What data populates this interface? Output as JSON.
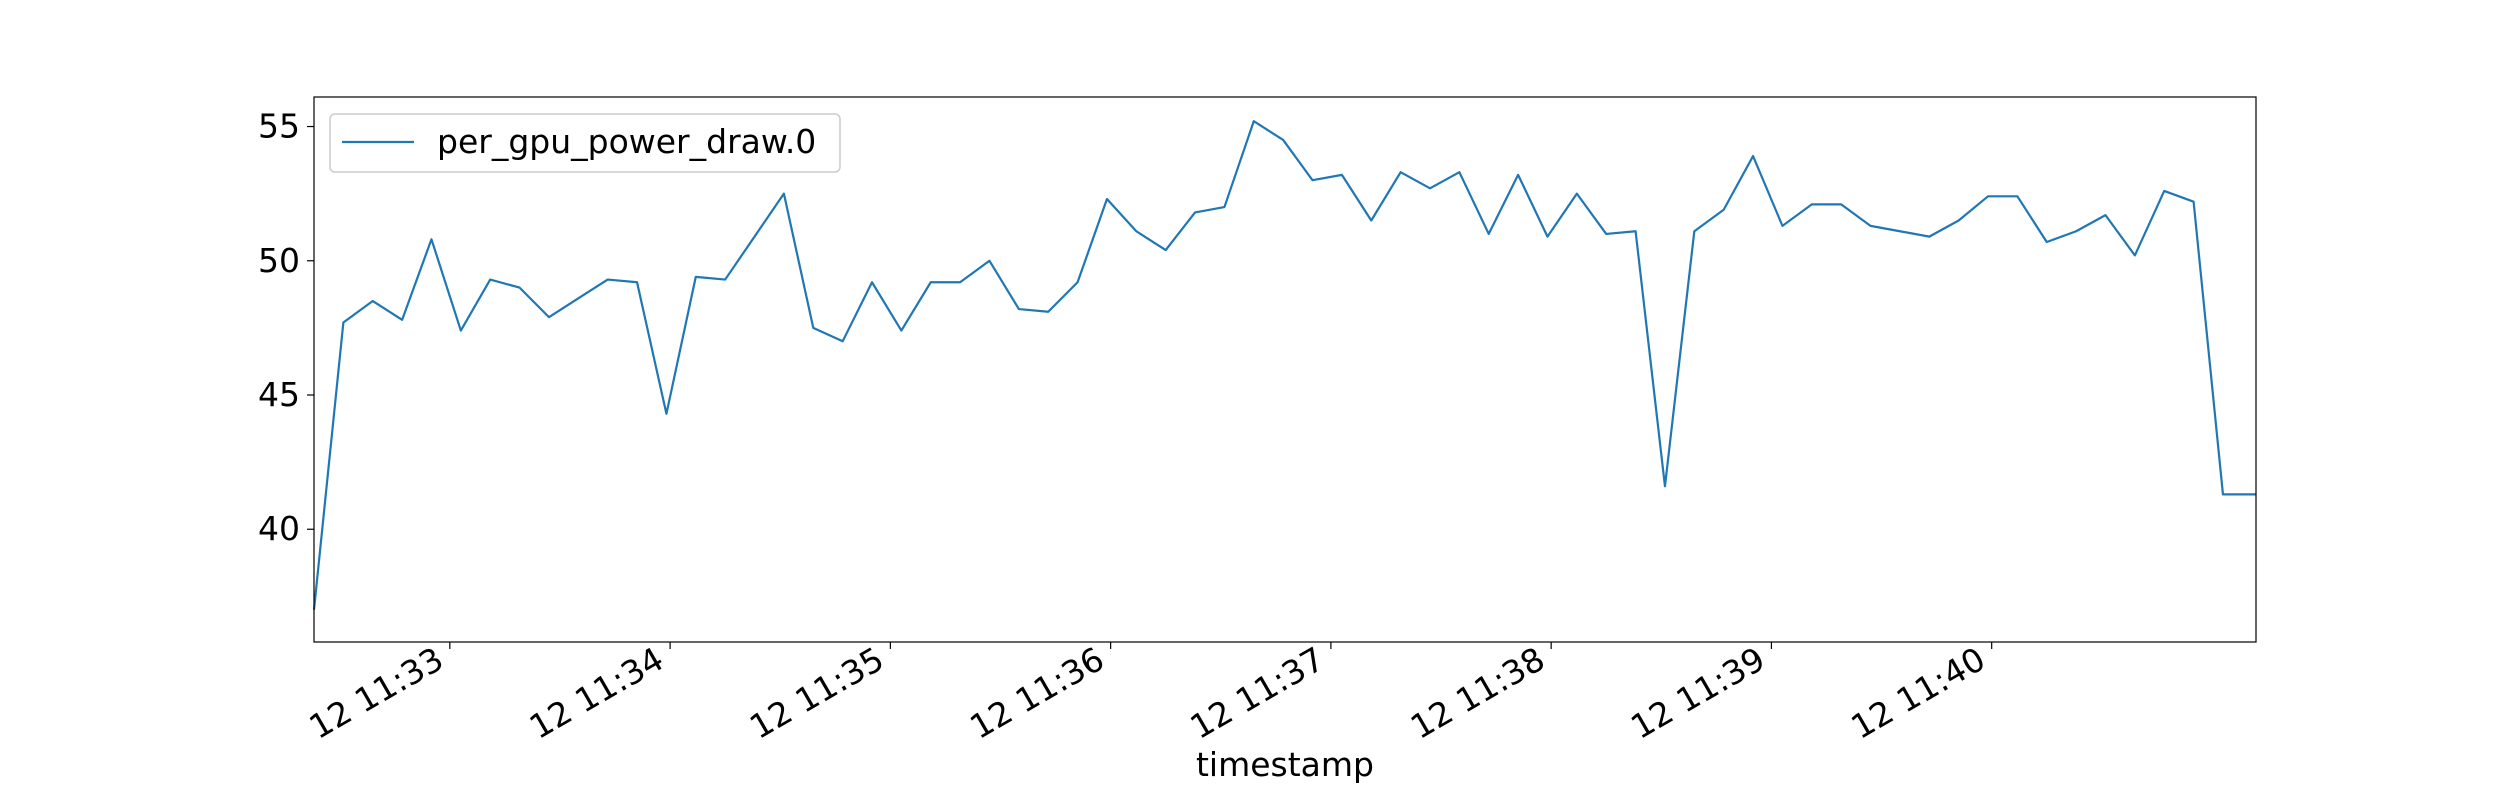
{
  "chart_data": {
    "type": "line",
    "title": "",
    "xlabel": "timestamp",
    "ylabel": "",
    "x_unit": "seconds from first tick label 12 11:33",
    "xlim": [
      -37,
      492
    ],
    "ylim": [
      35.8,
      56.1
    ],
    "x_ticks": [
      {
        "x": 0,
        "label": "12 11:33"
      },
      {
        "x": 60,
        "label": "12 11:34"
      },
      {
        "x": 120,
        "label": "12 11:35"
      },
      {
        "x": 180,
        "label": "12 11:36"
      },
      {
        "x": 240,
        "label": "12 11:37"
      },
      {
        "x": 300,
        "label": "12 11:38"
      },
      {
        "x": 360,
        "label": "12 11:39"
      },
      {
        "x": 420,
        "label": "12 11:40"
      }
    ],
    "y_ticks": [
      40,
      45,
      50,
      55
    ],
    "grid": false,
    "legend_position": "upper-left",
    "series": [
      {
        "name": "per_gpu_power_draw.0",
        "color": "#1f77b4",
        "x": [
          -37,
          -29,
          -21,
          -13,
          -5,
          3,
          11,
          19,
          27,
          35,
          43,
          51,
          59,
          67,
          75,
          83,
          91,
          99,
          107,
          115,
          123,
          131,
          139,
          147,
          155,
          163,
          171,
          179,
          187,
          195,
          203,
          211,
          219,
          227,
          235,
          243,
          251,
          259,
          267,
          275,
          283,
          291,
          299,
          307,
          315,
          323,
          331,
          339,
          347,
          355,
          363,
          371,
          379,
          387,
          395,
          403,
          411,
          419,
          427,
          435,
          443,
          451,
          459,
          467,
          475,
          483,
          492
        ],
        "y": [
          37.0,
          47.7,
          48.5,
          47.8,
          50.8,
          47.4,
          49.3,
          49.0,
          47.9,
          48.6,
          49.3,
          49.2,
          44.3,
          49.4,
          49.3,
          50.9,
          52.5,
          47.5,
          47.0,
          49.2,
          47.4,
          49.2,
          49.2,
          50.0,
          48.2,
          48.1,
          49.2,
          52.3,
          51.1,
          50.4,
          51.8,
          52.0,
          55.2,
          54.5,
          53.0,
          53.2,
          51.5,
          53.3,
          52.7,
          53.3,
          51.0,
          53.2,
          50.9,
          52.5,
          51.0,
          51.1,
          41.6,
          51.1,
          51.9,
          53.9,
          51.3,
          52.1,
          52.1,
          51.3,
          51.1,
          50.9,
          51.5,
          52.4,
          52.4,
          50.7,
          51.1,
          51.7,
          50.2,
          52.6,
          52.2,
          41.3,
          41.3
        ]
      }
    ]
  }
}
